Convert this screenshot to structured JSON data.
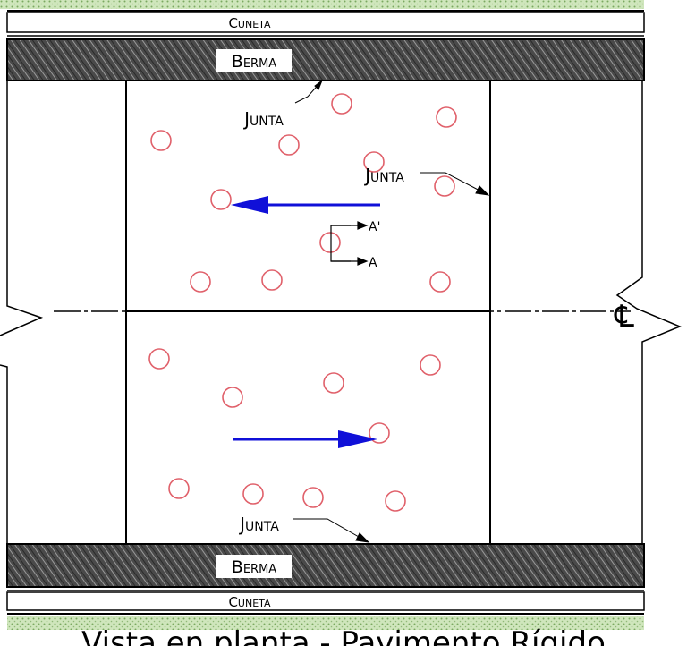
{
  "labels": {
    "cuneta_top": "Cuneta",
    "berma_top": "Berma",
    "cuneta_bottom": "Cuneta",
    "berma_bottom": "Berma",
    "junta_1": "Junta",
    "junta_2": "Junta",
    "junta_3": "Junta",
    "section_a_prime": "A'",
    "section_a": "A",
    "centerline": "℄",
    "caption": "Vista en planta - Pavimento Rígido"
  },
  "colors": {
    "arrow_blue": "#1010d8",
    "spall_red": "#e0606a",
    "hatch_dark": "#3c3c3c",
    "gravel_green": "#b8d8a0"
  }
}
